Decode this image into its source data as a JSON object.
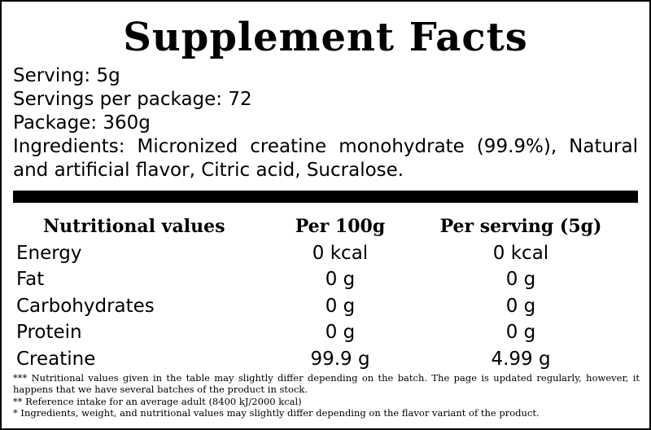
{
  "title": "Supplement Facts",
  "info": {
    "serving": "Serving: 5g",
    "servings_per_package": "Servings per package: 72",
    "package": "Package: 360g",
    "ingredients": "Ingredients: Micronized creatine monohydrate (99.9%), Natural and artificial flavor, Citric acid, Sucralose."
  },
  "table": {
    "headers": [
      "Nutritional values",
      "Per 100g",
      "Per serving (5g)"
    ],
    "rows": [
      [
        "Energy",
        "0 kcal",
        "0 kcal"
      ],
      [
        "Fat",
        "0 g",
        "0 g"
      ],
      [
        "Carbohydrates",
        "0 g",
        "0 g"
      ],
      [
        "Protein",
        "0 g",
        "0 g"
      ],
      [
        "Creatine",
        "99.9 g",
        "4.99 g"
      ]
    ]
  },
  "notes": [
    "*** Nutritional values given in the table may slightly differ depending on the batch. The page is updated regularly, however, it happens that we have several batches of the product in stock.",
    "** Reference intake for an average adult (8400 kJ/2000 kcal)",
    "* Ingredients, weight, and nutritional values may slightly differ depending on the flavor variant of the product."
  ]
}
